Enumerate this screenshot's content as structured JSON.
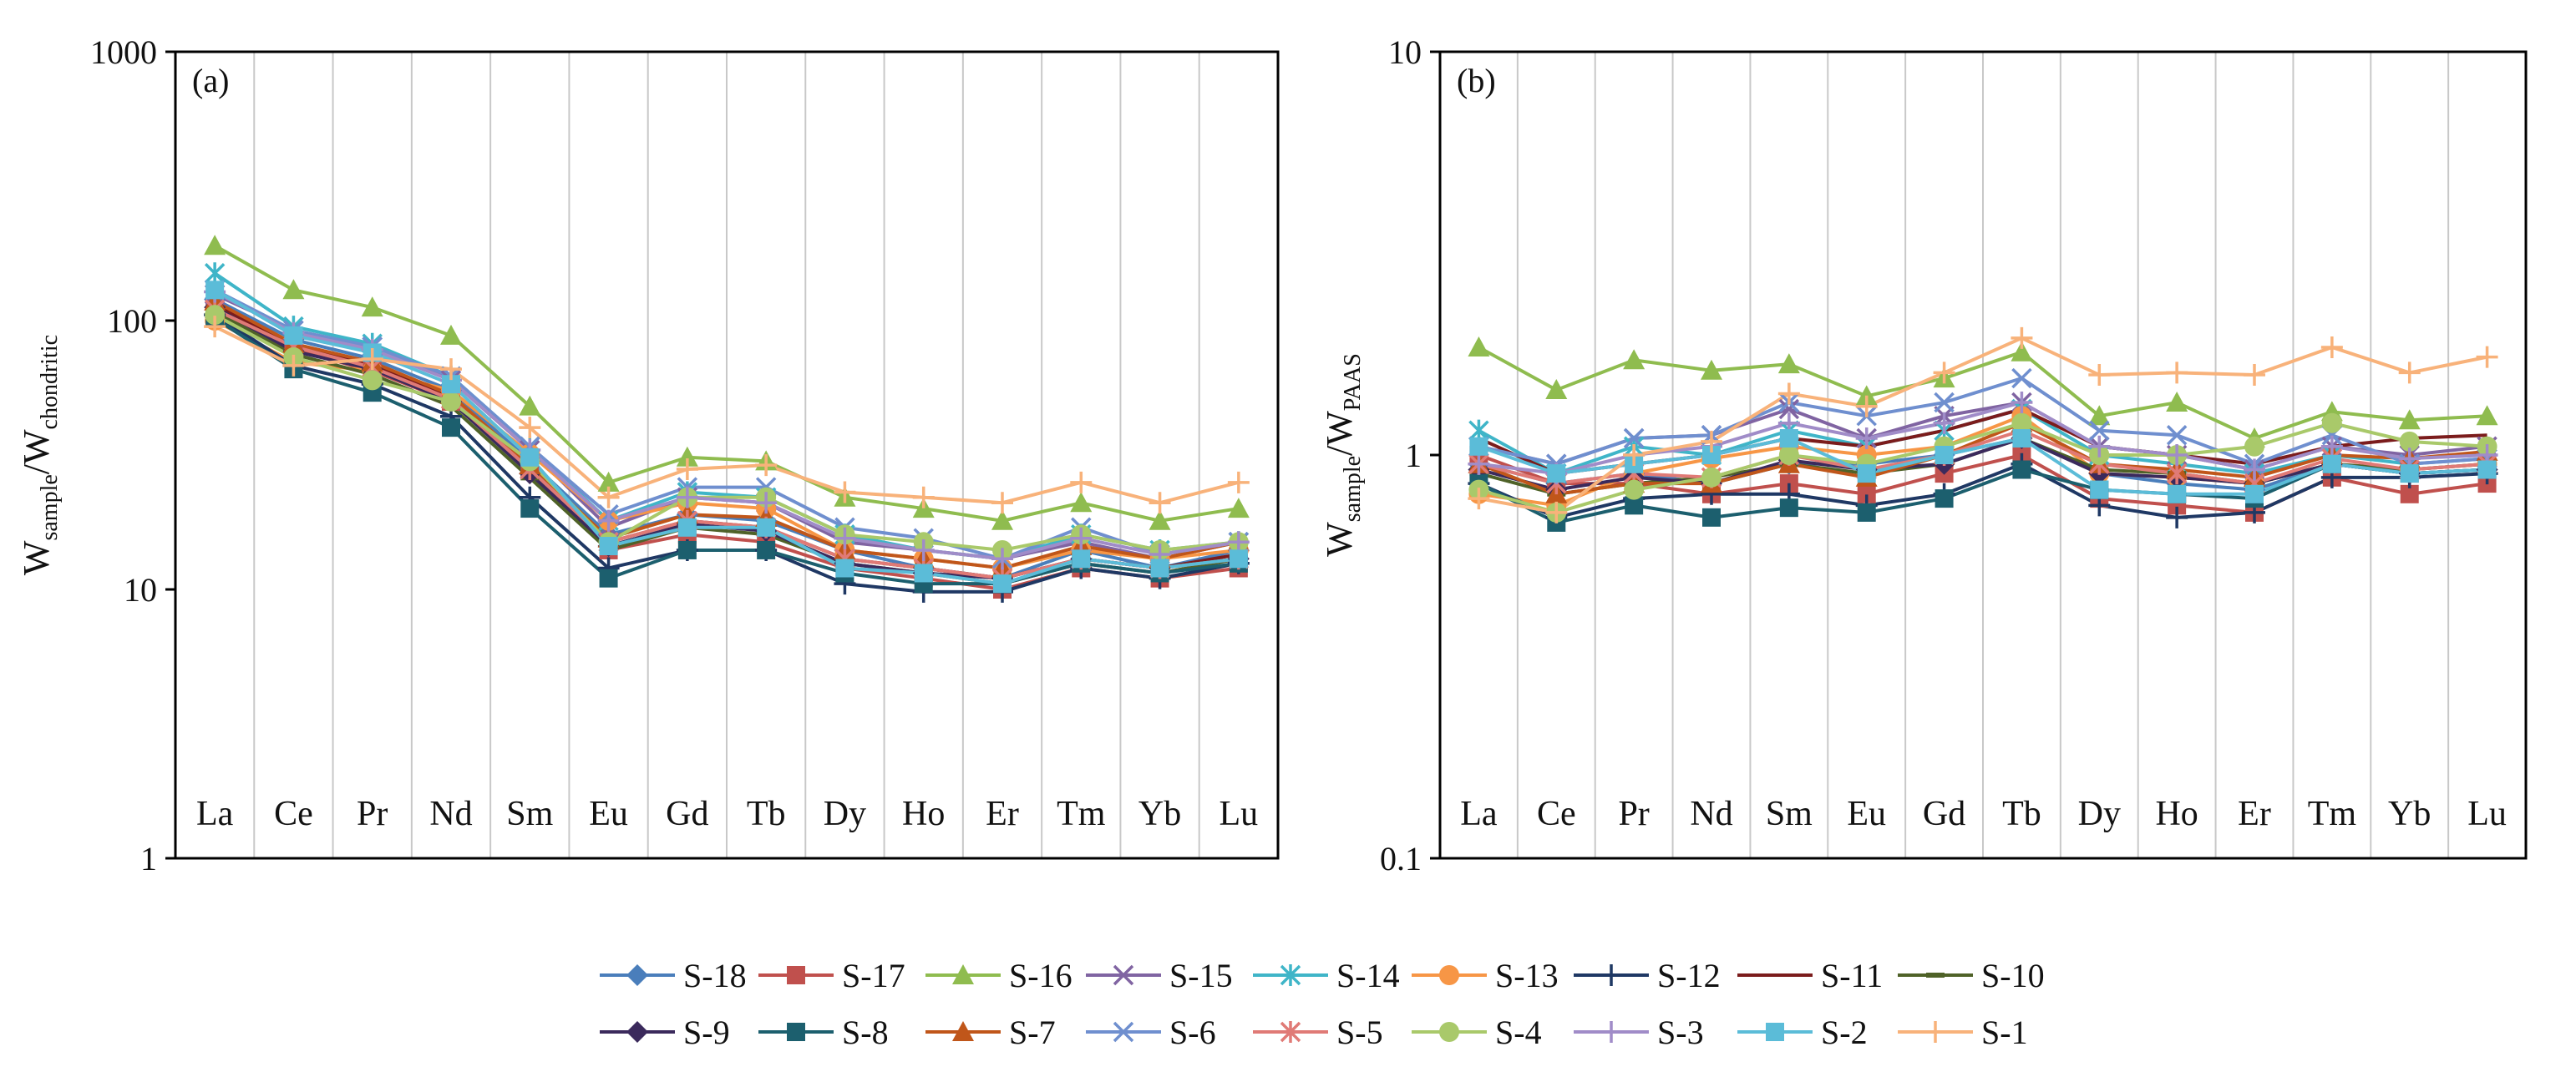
{
  "chart_data": [
    {
      "type": "line",
      "panel_label": "(a)",
      "y_scale": "log",
      "ylim": [
        1,
        1000
      ],
      "yticks": [
        "1",
        "10",
        "100",
        "1000"
      ],
      "ylabel_main": "W",
      "ylabel_sub1": "sample",
      "ylabel_mid": "/W",
      "ylabel_sub2": "chondritic",
      "categories": [
        "La",
        "Ce",
        "Pr",
        "Nd",
        "Sm",
        "Eu",
        "Gd",
        "Tb",
        "Dy",
        "Ho",
        "Er",
        "Tm",
        "Yb",
        "Lu"
      ],
      "grid": "vertical",
      "series": [
        {
          "name": "S-18",
          "values": [
            120,
            85,
            72,
            55,
            30,
            16,
            19,
            18,
            14,
            12,
            11,
            14,
            12,
            14
          ]
        },
        {
          "name": "S-17",
          "values": [
            110,
            78,
            65,
            50,
            28,
            14,
            16,
            15,
            12,
            11,
            10,
            12,
            11,
            12
          ]
        },
        {
          "name": "S-16",
          "values": [
            190,
            130,
            112,
            88,
            48,
            25,
            31,
            30,
            22,
            20,
            18,
            21,
            18,
            20
          ]
        },
        {
          "name": "S-15",
          "values": [
            125,
            92,
            80,
            60,
            33,
            17,
            22,
            21,
            15,
            14,
            13,
            15,
            13,
            15
          ]
        },
        {
          "name": "S-14",
          "values": [
            150,
            95,
            82,
            62,
            34,
            18,
            23,
            22,
            16,
            14,
            13,
            16,
            14,
            15
          ]
        },
        {
          "name": "S-13",
          "values": [
            100,
            70,
            65,
            55,
            32,
            18,
            21,
            20,
            14,
            13,
            12,
            14,
            13,
            14
          ]
        },
        {
          "name": "S-12",
          "values": [
            105,
            68,
            58,
            44,
            22,
            12,
            14,
            14,
            10.5,
            9.8,
            9.8,
            12,
            11,
            12.5
          ]
        },
        {
          "name": "S-11",
          "values": [
            115,
            80,
            68,
            52,
            28,
            15,
            18,
            17,
            13,
            12,
            11,
            13,
            12,
            13.5
          ]
        },
        {
          "name": "S-10",
          "values": [
            108,
            75,
            63,
            48,
            26,
            14,
            17,
            16,
            12.5,
            11.5,
            10.5,
            12.5,
            11.5,
            13
          ]
        },
        {
          "name": "S-9",
          "values": [
            112,
            77,
            66,
            50,
            27,
            14.5,
            17.5,
            16.5,
            12.5,
            11.5,
            11,
            13,
            12,
            13
          ]
        },
        {
          "name": "S-8",
          "values": [
            102,
            66,
            54,
            40,
            20,
            11,
            14,
            14,
            11.5,
            10.5,
            10.5,
            12.5,
            11.5,
            12.5
          ]
        },
        {
          "name": "S-7",
          "values": [
            118,
            82,
            70,
            53,
            29,
            15.5,
            19,
            18.5,
            14,
            13,
            12,
            14.5,
            13,
            15
          ]
        },
        {
          "name": "S-6",
          "values": [
            130,
            92,
            80,
            62,
            34,
            19,
            24,
            24,
            17,
            15.5,
            13,
            17,
            13.5,
            15
          ]
        },
        {
          "name": "S-5",
          "values": [
            110,
            80,
            67,
            51,
            28,
            15,
            18,
            17,
            13,
            12,
            11,
            13,
            12,
            13
          ]
        },
        {
          "name": "S-4",
          "values": [
            105,
            73,
            60,
            50,
            30,
            15,
            22,
            22,
            16,
            15,
            14,
            16,
            14,
            15
          ]
        },
        {
          "name": "S-3",
          "values": [
            128,
            90,
            78,
            60,
            33,
            18,
            22,
            21,
            15.5,
            14,
            13,
            15.5,
            13.5,
            15
          ]
        },
        {
          "name": "S-2",
          "values": [
            130,
            88,
            76,
            58,
            31,
            14.5,
            17,
            17,
            12,
            11.5,
            10.5,
            13,
            12,
            13
          ]
        },
        {
          "name": "S-1",
          "values": [
            95,
            68,
            72,
            66,
            40,
            22,
            28,
            29,
            23,
            22,
            21,
            25,
            21,
            25
          ]
        }
      ]
    },
    {
      "type": "line",
      "panel_label": "(b)",
      "y_scale": "log",
      "ylim": [
        0.1,
        10
      ],
      "yticks": [
        "0.1",
        "1",
        "10"
      ],
      "ylabel_main": "W",
      "ylabel_sub1": "sample",
      "ylabel_mid": "/W",
      "ylabel_sub2": "PAAS",
      "categories": [
        "La",
        "Ce",
        "Pr",
        "Nd",
        "Sm",
        "Eu",
        "Gd",
        "Tb",
        "Dy",
        "Ho",
        "Er",
        "Tm",
        "Yb",
        "Lu"
      ],
      "grid": "vertical",
      "series": [
        {
          "name": "S-18",
          "values": [
            0.95,
            0.85,
            0.9,
            0.85,
            0.95,
            0.95,
            1.0,
            1.1,
            0.9,
            0.85,
            0.82,
            0.95,
            0.9,
            0.92
          ]
        },
        {
          "name": "S-17",
          "values": [
            1.0,
            0.85,
            0.85,
            0.8,
            0.85,
            0.8,
            0.9,
            1.0,
            0.78,
            0.75,
            0.72,
            0.88,
            0.8,
            0.85
          ]
        },
        {
          "name": "S-16",
          "values": [
            1.85,
            1.45,
            1.72,
            1.62,
            1.68,
            1.4,
            1.55,
            1.8,
            1.25,
            1.35,
            1.1,
            1.28,
            1.22,
            1.25
          ]
        },
        {
          "name": "S-15",
          "values": [
            1.05,
            0.95,
            1.1,
            1.12,
            1.3,
            1.1,
            1.25,
            1.35,
            1.05,
            1.0,
            0.92,
            1.05,
            1.0,
            1.05
          ]
        },
        {
          "name": "S-14",
          "values": [
            1.15,
            0.9,
            1.05,
            1.0,
            1.15,
            1.05,
            1.15,
            1.3,
            1.0,
            0.95,
            0.9,
            1.0,
            0.95,
            0.98
          ]
        },
        {
          "name": "S-13",
          "values": [
            0.8,
            0.75,
            0.9,
            0.98,
            1.05,
            1.0,
            1.05,
            1.25,
            0.9,
            0.88,
            0.85,
            0.95,
            0.92,
            0.95
          ]
        },
        {
          "name": "S-12",
          "values": [
            0.85,
            0.7,
            0.78,
            0.8,
            0.8,
            0.75,
            0.8,
            0.95,
            0.75,
            0.7,
            0.72,
            0.88,
            0.88,
            0.9
          ]
        },
        {
          "name": "S-11",
          "values": [
            1.1,
            0.9,
            0.95,
            1.0,
            1.1,
            1.05,
            1.15,
            1.3,
            1.05,
            1.0,
            0.95,
            1.05,
            1.1,
            1.12
          ]
        },
        {
          "name": "S-10",
          "values": [
            0.9,
            0.8,
            0.85,
            0.88,
            0.95,
            0.9,
            0.95,
            1.1,
            0.92,
            0.9,
            0.85,
            0.95,
            0.92,
            0.95
          ]
        },
        {
          "name": "S-9",
          "values": [
            0.92,
            0.82,
            0.88,
            0.85,
            0.97,
            0.92,
            0.95,
            1.1,
            0.9,
            0.88,
            0.85,
            0.95,
            0.9,
            0.92
          ]
        },
        {
          "name": "S-8",
          "values": [
            0.85,
            0.68,
            0.75,
            0.7,
            0.74,
            0.72,
            0.78,
            0.92,
            0.82,
            0.8,
            0.78,
            0.95,
            0.9,
            0.92
          ]
        },
        {
          "name": "S-7",
          "values": [
            0.95,
            0.8,
            0.85,
            0.85,
            0.95,
            0.88,
            1.0,
            1.2,
            0.95,
            0.92,
            0.88,
            1.0,
            0.98,
            1.02
          ]
        },
        {
          "name": "S-6",
          "values": [
            1.05,
            0.95,
            1.1,
            1.12,
            1.35,
            1.25,
            1.35,
            1.55,
            1.15,
            1.12,
            0.95,
            1.12,
            0.95,
            0.98
          ]
        },
        {
          "name": "S-5",
          "values": [
            0.95,
            0.85,
            0.9,
            0.88,
            1.0,
            0.92,
            1.0,
            1.15,
            0.95,
            0.9,
            0.85,
            0.98,
            0.92,
            0.95
          ]
        },
        {
          "name": "S-4",
          "values": [
            0.82,
            0.72,
            0.82,
            0.88,
            1.0,
            0.95,
            1.05,
            1.2,
            1.0,
            1.0,
            1.05,
            1.2,
            1.08,
            1.05
          ]
        },
        {
          "name": "S-3",
          "values": [
            0.95,
            0.9,
            1.0,
            1.05,
            1.2,
            1.1,
            1.2,
            1.35,
            1.05,
            1.0,
            0.92,
            1.05,
            0.98,
            1.0
          ]
        },
        {
          "name": "S-2",
          "values": [
            1.05,
            0.9,
            0.95,
            1.0,
            1.1,
            0.9,
            1.0,
            1.1,
            0.82,
            0.8,
            0.8,
            0.95,
            0.9,
            0.92
          ]
        },
        {
          "name": "S-1",
          "values": [
            0.78,
            0.72,
            1.0,
            1.08,
            1.42,
            1.32,
            1.6,
            1.95,
            1.58,
            1.6,
            1.58,
            1.85,
            1.6,
            1.75
          ]
        }
      ]
    }
  ],
  "legend": {
    "placement": "bottom-center",
    "items": [
      {
        "name": "S-18",
        "color": "#4a7ebb",
        "marker": "diamond"
      },
      {
        "name": "S-17",
        "color": "#c0504d",
        "marker": "square"
      },
      {
        "name": "S-16",
        "color": "#8fbc4f",
        "marker": "triangle"
      },
      {
        "name": "S-15",
        "color": "#8064a2",
        "marker": "x"
      },
      {
        "name": "S-14",
        "color": "#3fb5c8",
        "marker": "asterisk"
      },
      {
        "name": "S-13",
        "color": "#f79646",
        "marker": "circle"
      },
      {
        "name": "S-12",
        "color": "#1f3864",
        "marker": "plus"
      },
      {
        "name": "S-11",
        "color": "#7b1c1c",
        "marker": "line"
      },
      {
        "name": "S-10",
        "color": "#4f6228",
        "marker": "dash"
      },
      {
        "name": "S-9",
        "color": "#3b2a5c",
        "marker": "diamond"
      },
      {
        "name": "S-8",
        "color": "#1c5f6e",
        "marker": "square"
      },
      {
        "name": "S-7",
        "color": "#c0561a",
        "marker": "triangle"
      },
      {
        "name": "S-6",
        "color": "#6f8fcf",
        "marker": "x"
      },
      {
        "name": "S-5",
        "color": "#e07a76",
        "marker": "asterisk"
      },
      {
        "name": "S-4",
        "color": "#a9c96a",
        "marker": "circle"
      },
      {
        "name": "S-3",
        "color": "#a08cc8",
        "marker": "plus"
      },
      {
        "name": "S-2",
        "color": "#5bbcd8",
        "marker": "square"
      },
      {
        "name": "S-1",
        "color": "#f8b27a",
        "marker": "plus"
      }
    ]
  }
}
